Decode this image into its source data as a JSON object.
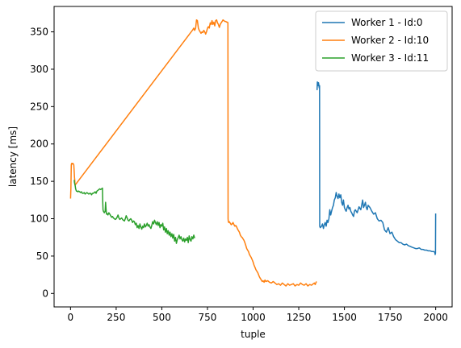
{
  "chart_data": {
    "type": "line",
    "xlabel": "tuple",
    "ylabel": "latency [ms]",
    "xlim": [
      -90,
      2090
    ],
    "ylim": [
      -18,
      384
    ],
    "xticks": [
      0,
      250,
      500,
      750,
      1000,
      1250,
      1500,
      1750,
      2000
    ],
    "yticks": [
      0,
      50,
      100,
      150,
      200,
      250,
      300,
      350
    ],
    "grid": false,
    "legend_position": "top-right",
    "series": [
      {
        "name": "Worker 1 - Id:0",
        "color": "#1f77b4",
        "x": [
          1350,
          1352,
          1355,
          1358,
          1362,
          1364,
          1365,
          1368,
          1375,
          1380,
          1385,
          1390,
          1395,
          1400,
          1405,
          1410,
          1415,
          1420,
          1425,
          1430,
          1435,
          1440,
          1445,
          1450,
          1455,
          1460,
          1465,
          1470,
          1475,
          1480,
          1485,
          1490,
          1495,
          1500,
          1505,
          1510,
          1515,
          1520,
          1525,
          1530,
          1535,
          1540,
          1545,
          1550,
          1555,
          1560,
          1570,
          1580,
          1590,
          1600,
          1605,
          1610,
          1615,
          1620,
          1625,
          1630,
          1640,
          1650,
          1660,
          1670,
          1680,
          1690,
          1700,
          1710,
          1720,
          1730,
          1740,
          1750,
          1760,
          1770,
          1780,
          1790,
          1800,
          1810,
          1820,
          1830,
          1840,
          1850,
          1860,
          1870,
          1880,
          1890,
          1900,
          1910,
          1920,
          1930,
          1940,
          1950,
          1960,
          1970,
          1980,
          1990,
          1995,
          1997,
          1999,
          2000
        ],
        "y": [
          272,
          283,
          278,
          282,
          275,
          278,
          90,
          88,
          90,
          93,
          87,
          92,
          95,
          90,
          98,
          95,
          100,
          112,
          105,
          110,
          115,
          118,
          125,
          128,
          135,
          130,
          127,
          133,
          128,
          132,
          122,
          118,
          125,
          115,
          112,
          110,
          115,
          118,
          113,
          115,
          110,
          108,
          105,
          103,
          110,
          112,
          108,
          116,
          112,
          125,
          115,
          118,
          122,
          115,
          112,
          118,
          115,
          110,
          106,
          108,
          100,
          97,
          98,
          95,
          85,
          82,
          88,
          80,
          82,
          76,
          72,
          70,
          68,
          68,
          66,
          65,
          66,
          64,
          63,
          62,
          61,
          60,
          60,
          61,
          59,
          59,
          58,
          58,
          57,
          57,
          56,
          56,
          55,
          52,
          54,
          107
        ]
      },
      {
        "name": "Worker 2 - Id:10",
        "color": "#ff7f0e",
        "x": [
          0,
          2,
          4,
          6,
          8,
          10,
          14,
          18,
          20,
          22,
          23,
          24,
          25,
          670,
          675,
          680,
          685,
          690,
          695,
          700,
          705,
          710,
          715,
          720,
          725,
          730,
          735,
          740,
          745,
          750,
          755,
          760,
          765,
          770,
          775,
          780,
          785,
          790,
          795,
          800,
          805,
          810,
          815,
          820,
          825,
          830,
          835,
          840,
          845,
          850,
          855,
          860,
          862,
          863,
          864,
          866,
          870,
          875,
          880,
          885,
          890,
          895,
          900,
          905,
          910,
          915,
          920,
          925,
          930,
          935,
          940,
          945,
          950,
          955,
          960,
          965,
          970,
          975,
          980,
          985,
          990,
          995,
          1000,
          1005,
          1010,
          1015,
          1020,
          1025,
          1030,
          1035,
          1040,
          1045,
          1050,
          1055,
          1060,
          1065,
          1070,
          1080,
          1090,
          1100,
          1110,
          1120,
          1130,
          1140,
          1150,
          1160,
          1170,
          1180,
          1190,
          1200,
          1210,
          1220,
          1230,
          1240,
          1250,
          1260,
          1270,
          1280,
          1290,
          1300,
          1310,
          1320,
          1330,
          1335,
          1340,
          1345,
          1348
        ],
        "y": [
          127,
          140,
          172,
          174,
          173,
          174,
          174,
          172,
          163,
          155,
          152,
          148,
          145,
          353,
          355,
          352,
          355,
          366,
          365,
          355,
          352,
          350,
          348,
          350,
          349,
          352,
          350,
          347,
          350,
          355,
          357,
          355,
          362,
          360,
          365,
          360,
          363,
          358,
          365,
          366,
          362,
          360,
          356,
          360,
          362,
          364,
          366,
          365,
          364,
          364,
          363,
          363,
          362,
          100,
          97,
          95,
          96,
          94,
          92,
          93,
          95,
          92,
          90,
          91,
          89,
          86,
          84,
          82,
          78,
          76,
          75,
          73,
          71,
          68,
          64,
          60,
          58,
          56,
          52,
          50,
          48,
          45,
          42,
          38,
          35,
          32,
          30,
          28,
          25,
          22,
          20,
          18,
          16,
          17,
          15,
          18,
          16,
          17,
          15,
          14,
          16,
          14,
          12,
          13,
          11,
          14,
          12,
          10,
          13,
          11,
          12,
          13,
          10,
          12,
          11,
          14,
          12,
          11,
          13,
          10,
          12,
          11,
          13,
          14,
          12,
          15,
          16
        ]
      },
      {
        "name": "Worker 3 - Id:11",
        "color": "#2ca02c",
        "x": [
          20,
          22,
          25,
          28,
          32,
          36,
          40,
          45,
          50,
          55,
          60,
          65,
          70,
          75,
          80,
          85,
          90,
          95,
          100,
          105,
          110,
          115,
          120,
          125,
          130,
          135,
          140,
          145,
          150,
          155,
          160,
          165,
          170,
          175,
          176,
          178,
          180,
          185,
          190,
          192,
          194,
          196,
          198,
          200,
          205,
          210,
          215,
          220,
          225,
          230,
          235,
          240,
          245,
          250,
          255,
          260,
          265,
          270,
          275,
          280,
          285,
          290,
          295,
          300,
          305,
          310,
          315,
          320,
          325,
          330,
          335,
          340,
          345,
          350,
          355,
          360,
          365,
          370,
          375,
          380,
          385,
          390,
          395,
          400,
          405,
          410,
          415,
          420,
          425,
          430,
          435,
          440,
          445,
          450,
          455,
          460,
          465,
          470,
          475,
          480,
          485,
          490,
          495,
          500,
          505,
          510,
          515,
          520,
          525,
          530,
          535,
          540,
          545,
          550,
          555,
          560,
          565,
          570,
          575,
          580,
          585,
          590,
          595,
          600,
          605,
          610,
          615,
          620,
          625,
          630,
          635,
          640,
          645,
          650,
          655,
          660,
          665,
          670,
          675,
          680
        ],
        "y": [
          152,
          148,
          145,
          140,
          137,
          137,
          136,
          137,
          136,
          135,
          136,
          134,
          134,
          135,
          133,
          134,
          135,
          134,
          133,
          134,
          134,
          132,
          134,
          134,
          135,
          136,
          134,
          137,
          138,
          139,
          140,
          139,
          140,
          141,
          125,
          112,
          110,
          108,
          110,
          122,
          115,
          108,
          106,
          107,
          105,
          108,
          106,
          104,
          102,
          103,
          101,
          100,
          99,
          100,
          102,
          105,
          101,
          99,
          100,
          101,
          99,
          98,
          97,
          100,
          104,
          101,
          98,
          97,
          99,
          100,
          98,
          95,
          97,
          96,
          92,
          94,
          88,
          91,
          87,
          93,
          89,
          86,
          90,
          88,
          93,
          89,
          91,
          94,
          90,
          92,
          89,
          87,
          91,
          96,
          93,
          98,
          95,
          92,
          96,
          91,
          95,
          88,
          92,
          90,
          94,
          85,
          89,
          82,
          87,
          80,
          84,
          78,
          82,
          76,
          80,
          74,
          79,
          70,
          75,
          67,
          72,
          75,
          78,
          73,
          76,
          72,
          70,
          74,
          69,
          73,
          71,
          75,
          68,
          77,
          72,
          70,
          76,
          73,
          78,
          74
        ]
      }
    ]
  }
}
